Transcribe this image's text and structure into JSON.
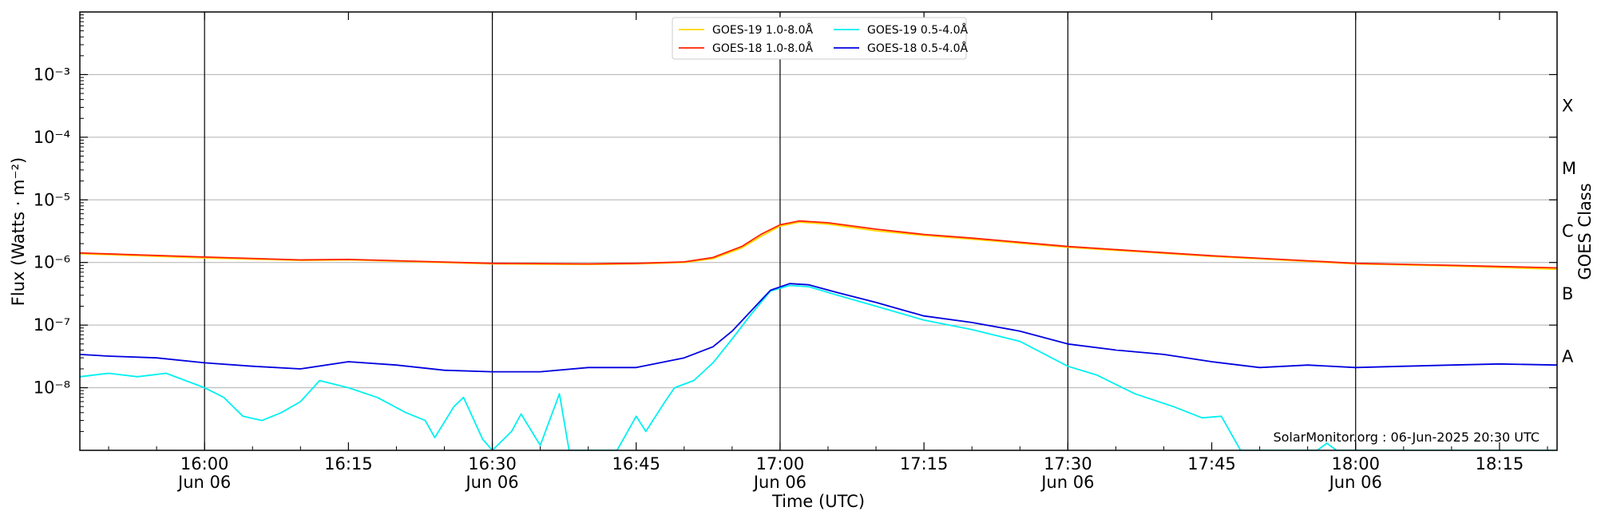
{
  "chart_data": {
    "type": "line",
    "title": "",
    "xlabel": "Time (UTC)",
    "ylabel": "Flux (Watts · m⁻²)",
    "right_axis_label": "GOES Class",
    "y_scale": "log",
    "ylim": [
      1e-09,
      0.01
    ],
    "x_range": [
      "15:47",
      "18:21"
    ],
    "grid": "horizontal + vertical at half-hours",
    "legend_position": "top-center",
    "x_ticks": [
      {
        "time": "16:00",
        "label": "16:00",
        "sub": "Jun 06"
      },
      {
        "time": "16:15",
        "label": "16:15",
        "sub": ""
      },
      {
        "time": "16:30",
        "label": "16:30",
        "sub": "Jun 06"
      },
      {
        "time": "16:45",
        "label": "16:45",
        "sub": ""
      },
      {
        "time": "17:00",
        "label": "17:00",
        "sub": "Jun 06"
      },
      {
        "time": "17:15",
        "label": "17:15",
        "sub": ""
      },
      {
        "time": "17:30",
        "label": "17:30",
        "sub": "Jun 06"
      },
      {
        "time": "17:45",
        "label": "17:45",
        "sub": ""
      },
      {
        "time": "18:00",
        "label": "18:00",
        "sub": "Jun 06"
      },
      {
        "time": "18:15",
        "label": "18:15",
        "sub": ""
      }
    ],
    "y_ticks": [
      {
        "value": 1e-08,
        "label": "10⁻⁸"
      },
      {
        "value": 1e-07,
        "label": "10⁻⁷"
      },
      {
        "value": 1e-06,
        "label": "10⁻⁶"
      },
      {
        "value": 1e-05,
        "label": "10⁻⁵"
      },
      {
        "value": 0.0001,
        "label": "10⁻⁴"
      },
      {
        "value": 0.001,
        "label": "10⁻³"
      }
    ],
    "class_labels": [
      {
        "label": "A",
        "value": 3.16e-08
      },
      {
        "label": "B",
        "value": 3.16e-07
      },
      {
        "label": "C",
        "value": 3.16e-06
      },
      {
        "label": "M",
        "value": 3.16e-05
      },
      {
        "label": "X",
        "value": 0.000316
      }
    ],
    "annotation": "SolarMonitor.org : 06-Jun-2025 20:30 UTC",
    "series": [
      {
        "name": "GOES-19 1.0-8.0Å",
        "color": "#ffd700",
        "points": [
          [
            "15:47",
            1.38e-06
          ],
          [
            "16:00",
            1.18e-06
          ],
          [
            "16:10",
            1.08e-06
          ],
          [
            "16:15",
            1.1e-06
          ],
          [
            "16:30",
            9.5e-07
          ],
          [
            "16:40",
            9.3e-07
          ],
          [
            "16:45",
            9.5e-07
          ],
          [
            "16:50",
            1e-06
          ],
          [
            "16:53",
            1.15e-06
          ],
          [
            "16:56",
            1.7e-06
          ],
          [
            "16:58",
            2.6e-06
          ],
          [
            "17:00",
            3.8e-06
          ],
          [
            "17:02",
            4.4e-06
          ],
          [
            "17:05",
            4.1e-06
          ],
          [
            "17:10",
            3.2e-06
          ],
          [
            "17:15",
            2.7e-06
          ],
          [
            "17:20",
            2.35e-06
          ],
          [
            "17:30",
            1.75e-06
          ],
          [
            "17:45",
            1.25e-06
          ],
          [
            "18:00",
            9.5e-07
          ],
          [
            "18:10",
            8.8e-07
          ],
          [
            "18:21",
            7.8e-07
          ]
        ]
      },
      {
        "name": "GOES-18 1.0-8.0Å",
        "color": "#ff2200",
        "points": [
          [
            "15:47",
            1.42e-06
          ],
          [
            "16:00",
            1.22e-06
          ],
          [
            "16:10",
            1.1e-06
          ],
          [
            "16:15",
            1.12e-06
          ],
          [
            "16:30",
            9.7e-07
          ],
          [
            "16:40",
            9.5e-07
          ],
          [
            "16:45",
            9.7e-07
          ],
          [
            "16:50",
            1.02e-06
          ],
          [
            "16:53",
            1.2e-06
          ],
          [
            "16:56",
            1.8e-06
          ],
          [
            "16:58",
            2.8e-06
          ],
          [
            "17:00",
            4e-06
          ],
          [
            "17:02",
            4.6e-06
          ],
          [
            "17:05",
            4.3e-06
          ],
          [
            "17:10",
            3.4e-06
          ],
          [
            "17:15",
            2.8e-06
          ],
          [
            "17:20",
            2.45e-06
          ],
          [
            "17:30",
            1.8e-06
          ],
          [
            "17:45",
            1.28e-06
          ],
          [
            "18:00",
            9.7e-07
          ],
          [
            "18:10",
            9e-07
          ],
          [
            "18:21",
            8.2e-07
          ]
        ]
      },
      {
        "name": "GOES-19 0.5-4.0Å",
        "color": "#00f0f0",
        "points": [
          [
            "15:47",
            1.5e-08
          ],
          [
            "15:50",
            1.7e-08
          ],
          [
            "15:53",
            1.5e-08
          ],
          [
            "15:56",
            1.7e-08
          ],
          [
            "16:00",
            1e-08
          ],
          [
            "16:02",
            7e-09
          ],
          [
            "16:04",
            3.5e-09
          ],
          [
            "16:06",
            3e-09
          ],
          [
            "16:08",
            4e-09
          ],
          [
            "16:10",
            6e-09
          ],
          [
            "16:12",
            1.3e-08
          ],
          [
            "16:15",
            1e-08
          ],
          [
            "16:18",
            7e-09
          ],
          [
            "16:21",
            4e-09
          ],
          [
            "16:23",
            3e-09
          ],
          [
            "16:24",
            1.6e-09
          ],
          [
            "16:26",
            5e-09
          ],
          [
            "16:27",
            7e-09
          ],
          [
            "16:29",
            1.5e-09
          ],
          [
            "16:30",
            1e-09
          ],
          [
            "16:32",
            2e-09
          ],
          [
            "16:33",
            3.8e-09
          ],
          [
            "16:35",
            1.2e-09
          ],
          [
            "16:37",
            8e-09
          ],
          [
            "16:38",
            1e-09
          ],
          [
            "16:43",
            1e-09
          ],
          [
            "16:45",
            3.5e-09
          ],
          [
            "16:46",
            2e-09
          ],
          [
            "16:48",
            6e-09
          ],
          [
            "16:49",
            1e-08
          ],
          [
            "16:51",
            1.3e-08
          ],
          [
            "16:53",
            2.5e-08
          ],
          [
            "16:55",
            6e-08
          ],
          [
            "16:57",
            1.5e-07
          ],
          [
            "16:59",
            3.5e-07
          ],
          [
            "17:01",
            4.3e-07
          ],
          [
            "17:03",
            4.1e-07
          ],
          [
            "17:06",
            3e-07
          ],
          [
            "17:10",
            2e-07
          ],
          [
            "17:15",
            1.2e-07
          ],
          [
            "17:20",
            8.5e-08
          ],
          [
            "17:25",
            5.5e-08
          ],
          [
            "17:30",
            2.2e-08
          ],
          [
            "17:33",
            1.6e-08
          ],
          [
            "17:37",
            8e-09
          ],
          [
            "17:41",
            5e-09
          ],
          [
            "17:44",
            3.3e-09
          ],
          [
            "17:46",
            3.5e-09
          ],
          [
            "17:48",
            1e-09
          ],
          [
            "17:56",
            1e-09
          ],
          [
            "17:57",
            1.3e-09
          ],
          [
            "17:58",
            1e-09
          ],
          [
            "18:21",
            1e-09
          ]
        ]
      },
      {
        "name": "GOES-18 0.5-4.0Å",
        "color": "#0000e0",
        "points": [
          [
            "15:47",
            3.4e-08
          ],
          [
            "15:50",
            3.2e-08
          ],
          [
            "15:55",
            3e-08
          ],
          [
            "16:00",
            2.5e-08
          ],
          [
            "16:05",
            2.2e-08
          ],
          [
            "16:10",
            2e-08
          ],
          [
            "16:15",
            2.6e-08
          ],
          [
            "16:20",
            2.3e-08
          ],
          [
            "16:25",
            1.9e-08
          ],
          [
            "16:30",
            1.8e-08
          ],
          [
            "16:35",
            1.8e-08
          ],
          [
            "16:40",
            2.1e-08
          ],
          [
            "16:45",
            2.1e-08
          ],
          [
            "16:50",
            3e-08
          ],
          [
            "16:53",
            4.5e-08
          ],
          [
            "16:55",
            8e-08
          ],
          [
            "16:57",
            1.7e-07
          ],
          [
            "16:59",
            3.6e-07
          ],
          [
            "17:01",
            4.6e-07
          ],
          [
            "17:03",
            4.4e-07
          ],
          [
            "17:06",
            3.3e-07
          ],
          [
            "17:10",
            2.3e-07
          ],
          [
            "17:15",
            1.4e-07
          ],
          [
            "17:20",
            1.1e-07
          ],
          [
            "17:25",
            8e-08
          ],
          [
            "17:30",
            5e-08
          ],
          [
            "17:35",
            4e-08
          ],
          [
            "17:40",
            3.4e-08
          ],
          [
            "17:45",
            2.6e-08
          ],
          [
            "17:50",
            2.1e-08
          ],
          [
            "17:55",
            2.3e-08
          ],
          [
            "18:00",
            2.1e-08
          ],
          [
            "18:05",
            2.2e-08
          ],
          [
            "18:10",
            2.3e-08
          ],
          [
            "18:15",
            2.4e-08
          ],
          [
            "18:21",
            2.3e-08
          ]
        ]
      }
    ]
  }
}
